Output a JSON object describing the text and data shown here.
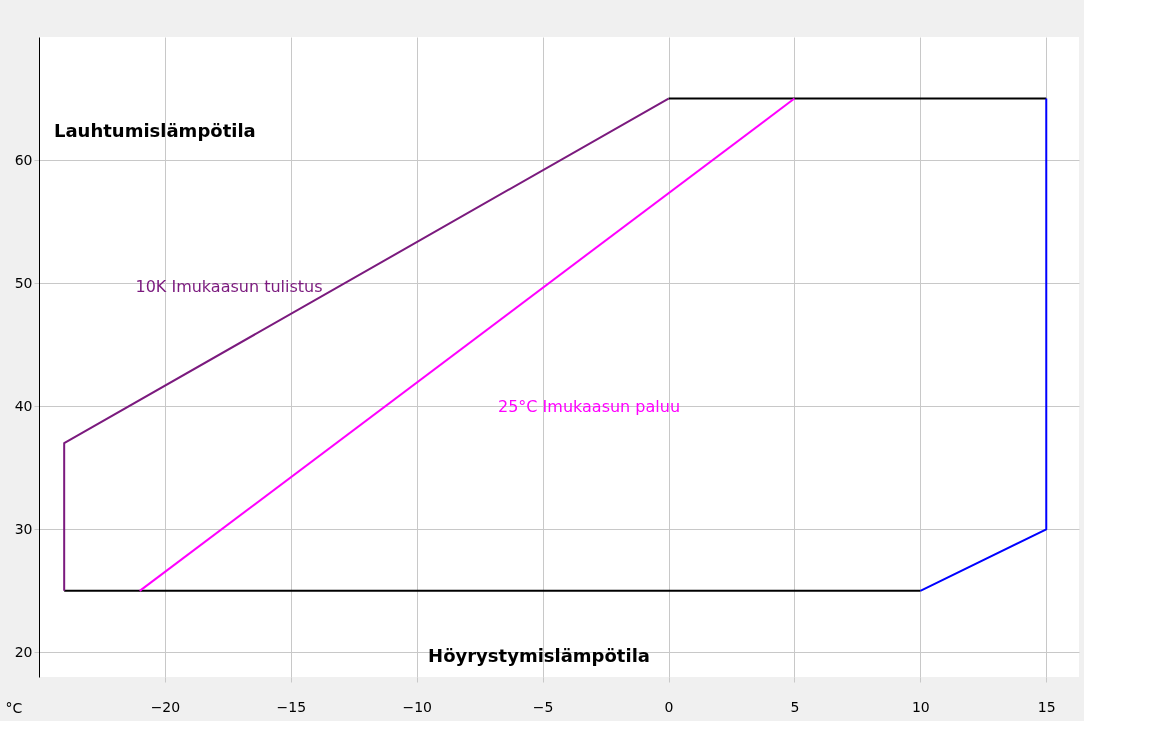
{
  "chart_data": {
    "type": "line",
    "xlabel": "Höyrystymislämpötila",
    "ylabel": "Lauhtumislämpötila",
    "annotations": [
      "°C"
    ],
    "series": [
      {
        "color": "#000000",
        "x": [
          0,
          15
        ],
        "values": [
          65,
          65
        ]
      },
      {
        "color": "#000000",
        "x": [
          -24,
          10
        ],
        "values": [
          25,
          25
        ]
      },
      {
        "name": "10K Imukaasun tulistus",
        "color": "#7b1a7e",
        "x": [
          -24,
          -24,
          0
        ],
        "values": [
          25,
          37,
          65
        ]
      },
      {
        "name": "25°C Imukaasun paluu",
        "color": "#ff00ff",
        "x": [
          -21,
          5
        ],
        "values": [
          25,
          65
        ]
      },
      {
        "color": "#0000ff",
        "x": [
          10,
          15,
          15
        ],
        "values": [
          25,
          30,
          65
        ]
      }
    ],
    "xlim": [
      -25,
      16.3
    ],
    "ylim": [
      18,
      70
    ],
    "xticks": [
      -20,
      -15,
      -10,
      -5,
      0,
      5,
      10,
      15
    ],
    "yticks": [
      20,
      30,
      40,
      50,
      60
    ],
    "grid": true,
    "marker": "none",
    "line_style": "solid"
  }
}
